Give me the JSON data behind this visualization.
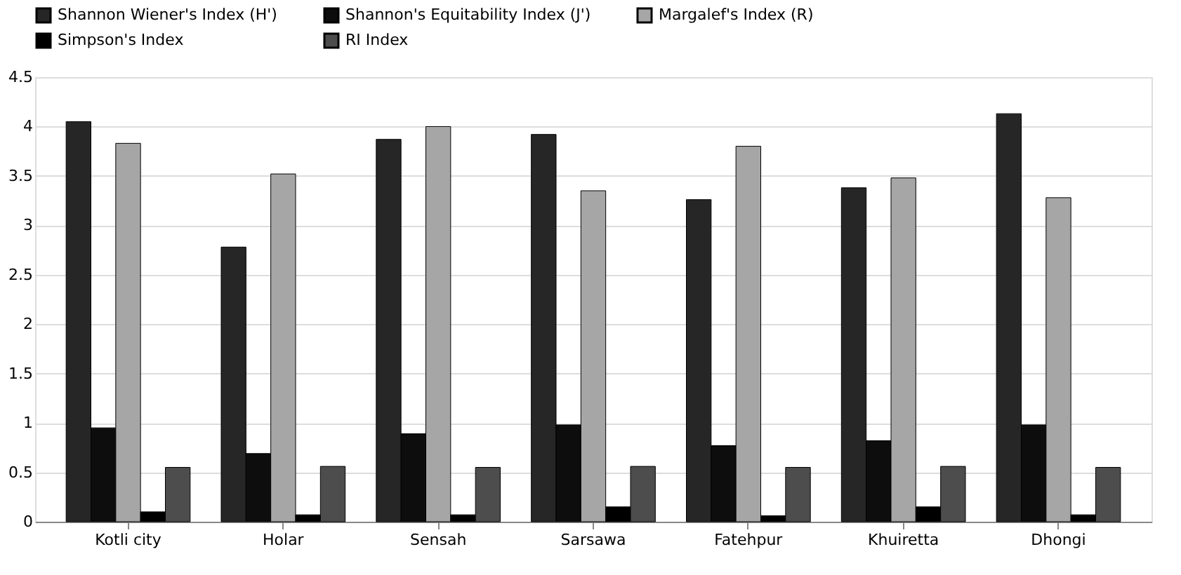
{
  "chart_data": {
    "type": "bar",
    "categories": [
      "Kotli city",
      "Holar",
      "Sensah",
      "Sarsawa",
      "Fatehpur",
      "Khuiretta",
      "Dhongi"
    ],
    "series": [
      {
        "name": "Shannon Wiener's Index (H')",
        "color": "#262626",
        "values": [
          4.05,
          2.78,
          3.87,
          3.92,
          3.26,
          3.38,
          4.13
        ]
      },
      {
        "name": "Shannon's Equitability Index (J')",
        "color": "#0d0d0d",
        "values": [
          0.95,
          0.69,
          0.89,
          0.98,
          0.77,
          0.82,
          0.98
        ]
      },
      {
        "name": "Margalef's Index (R)",
        "color": "#a6a6a6",
        "values": [
          3.83,
          3.52,
          4.0,
          3.35,
          3.8,
          3.48,
          3.28
        ]
      },
      {
        "name": "Simpson's Index",
        "color": "#000000",
        "values": [
          0.1,
          0.07,
          0.07,
          0.15,
          0.06,
          0.15,
          0.07
        ]
      },
      {
        "name": "RI Index",
        "color": "#4d4d4d",
        "values": [
          0.55,
          0.56,
          0.55,
          0.56,
          0.55,
          0.56,
          0.55
        ]
      }
    ],
    "ylim": [
      0,
      4.5
    ],
    "yticks": [
      0,
      0.5,
      1,
      1.5,
      2,
      2.5,
      3,
      3.5,
      4,
      4.5
    ],
    "grid": "y",
    "legend": "top"
  }
}
